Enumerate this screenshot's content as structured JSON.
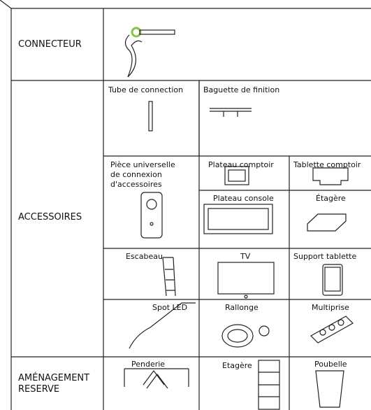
{
  "sections": [
    {
      "label": "CONNECTEUR"
    },
    {
      "label": "ACCESSOIRES",
      "items": [
        "Tube de connection",
        "Baguette de finition",
        "Pièce universelle de connexion d'accessoires",
        "Plateau comptoir",
        "Tablette comptoir",
        "Plateau console",
        "Étagère",
        "Escabeau",
        "TV",
        "Support tablette",
        "Spot LED",
        "Rallonge",
        "Multiprise"
      ]
    },
    {
      "label": "AMÉNAGEMENT RESERVE",
      "items": [
        "Penderie",
        "Etagère",
        "Poubelle"
      ]
    }
  ]
}
